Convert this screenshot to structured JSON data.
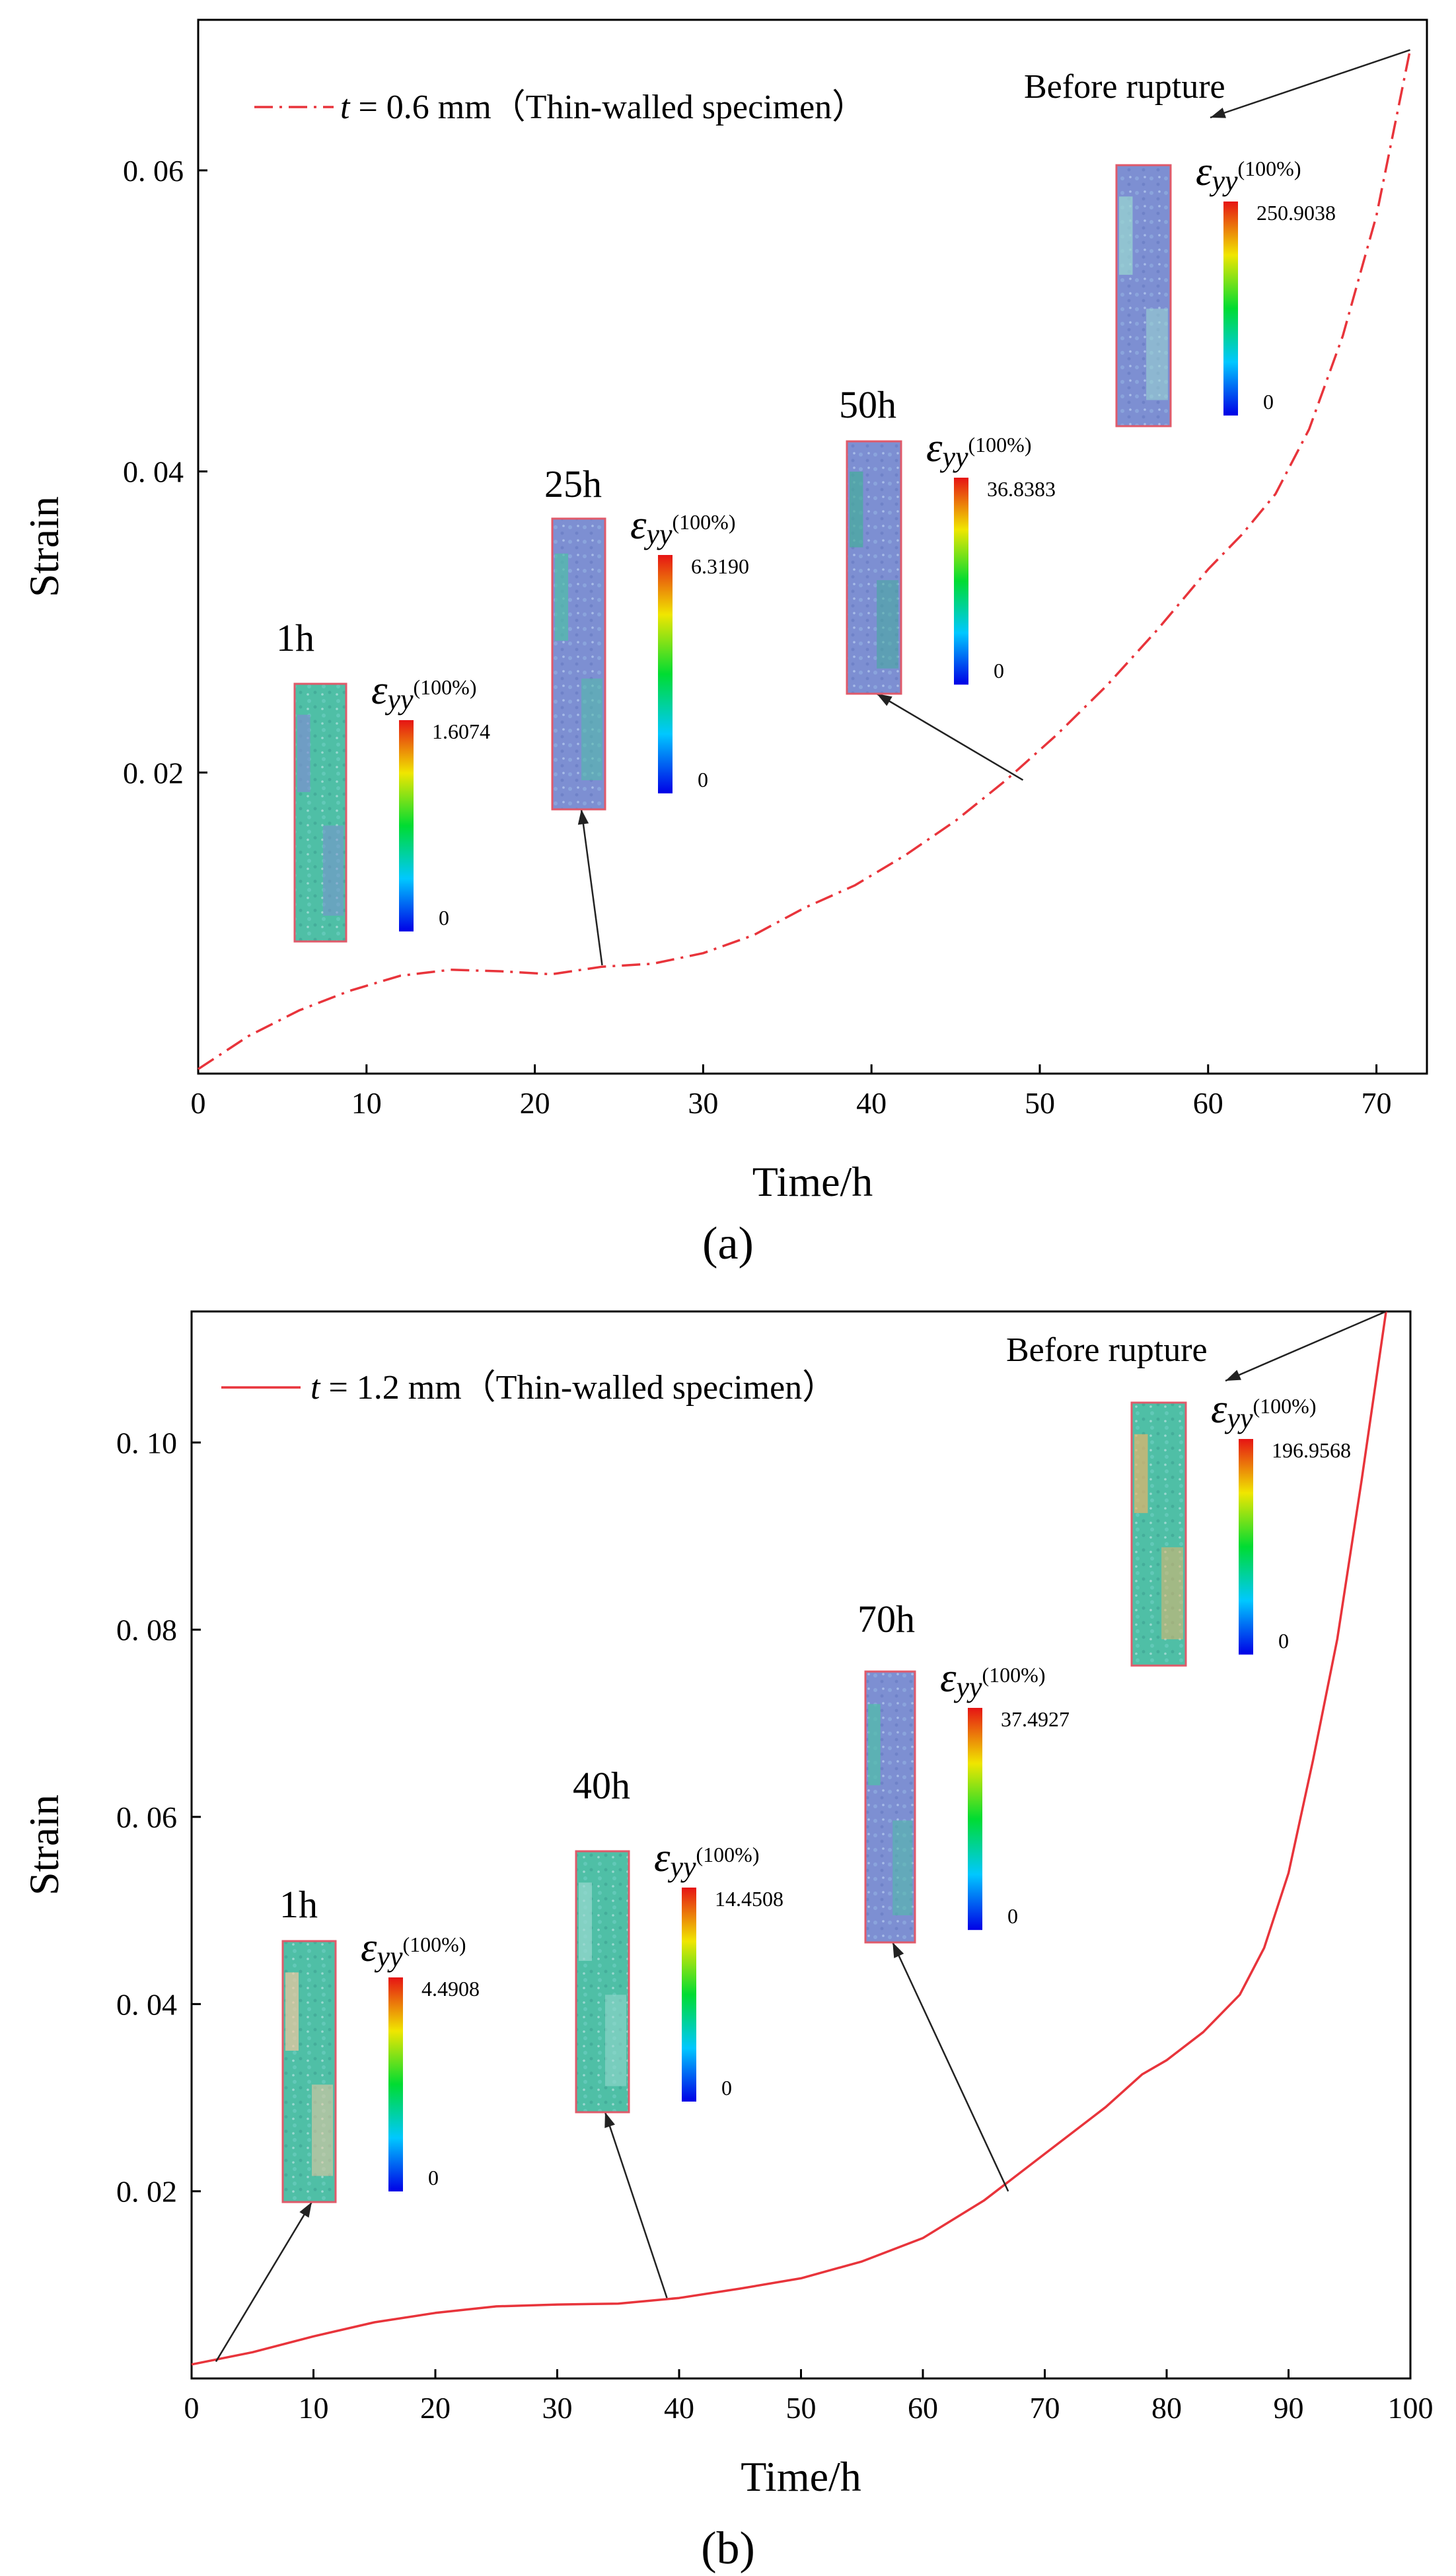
{
  "chart_data": [
    {
      "type": "line",
      "panel_label": "(a)",
      "xlabel": "Time/h",
      "ylabel": "Strain",
      "xlim": [
        0,
        73
      ],
      "ylim": [
        0,
        0.07
      ],
      "xticks": [
        0,
        10,
        20,
        30,
        40,
        50,
        60,
        70
      ],
      "yticks": [
        0.02,
        0.04,
        0.06
      ],
      "ytick_labels": [
        "0. 02",
        "0. 04",
        "0. 06"
      ],
      "legend_position": "top-left",
      "series": [
        {
          "name": "t = 0.6 mm（Thin-walled specimen）",
          "legend_var": "t",
          "legend_rest": " = 0.6 mm（Thin-walled specimen）",
          "style": "dashdot",
          "color": "#e8343b",
          "x": [
            0,
            3,
            6,
            9,
            12,
            15,
            18,
            21,
            24,
            27,
            30,
            33,
            36,
            39,
            42,
            45,
            48,
            51,
            54,
            57,
            60,
            62,
            64,
            66,
            68,
            70,
            72
          ],
          "y": [
            0.0003,
            0.0025,
            0.0042,
            0.0055,
            0.0065,
            0.0069,
            0.0068,
            0.0066,
            0.0071,
            0.0073,
            0.008,
            0.0092,
            0.011,
            0.0125,
            0.0145,
            0.0168,
            0.0195,
            0.0225,
            0.0258,
            0.0295,
            0.0335,
            0.0358,
            0.0385,
            0.0428,
            0.049,
            0.057,
            0.068
          ]
        }
      ],
      "annotations": [
        {
          "label": "1h",
          "colorbar_max": "1.6074",
          "colorbar_min": "0",
          "eps_symbol": "ε",
          "eps_sub": "yy",
          "eps_unit": "(100%)"
        },
        {
          "label": "25h",
          "colorbar_max": "6.3190",
          "colorbar_min": "0",
          "eps_symbol": "ε",
          "eps_sub": "yy",
          "eps_unit": "(100%)"
        },
        {
          "label": "50h",
          "colorbar_max": "36.8383",
          "colorbar_min": "0",
          "eps_symbol": "ε",
          "eps_sub": "yy",
          "eps_unit": "(100%)"
        },
        {
          "label": "Before  rupture",
          "colorbar_max": "250.9038",
          "colorbar_min": "0",
          "eps_symbol": "ε",
          "eps_sub": "yy",
          "eps_unit": "(100%)"
        }
      ]
    },
    {
      "type": "line",
      "panel_label": "(b)",
      "xlabel": "Time/h",
      "ylabel": "Strain",
      "xlim": [
        0,
        100
      ],
      "ylim": [
        0,
        0.114
      ],
      "xticks": [
        0,
        10,
        20,
        30,
        40,
        50,
        60,
        70,
        80,
        90,
        100
      ],
      "yticks": [
        0.02,
        0.04,
        0.06,
        0.08,
        0.1
      ],
      "ytick_labels": [
        "0. 02",
        "0. 04",
        "0. 06",
        "0. 08",
        "0. 10"
      ],
      "legend_position": "top-left",
      "series": [
        {
          "name": "t = 1.2 mm（Thin-walled specimen）",
          "legend_var": "t",
          "legend_rest": " = 1.2 mm（Thin-walled specimen）",
          "style": "solid",
          "color": "#e8343b",
          "x": [
            0,
            5,
            10,
            15,
            20,
            25,
            30,
            35,
            40,
            45,
            50,
            55,
            60,
            65,
            70,
            75,
            78,
            80,
            83,
            86,
            88,
            90,
            92,
            94,
            96,
            98
          ],
          "y": [
            0.0015,
            0.0028,
            0.0045,
            0.006,
            0.007,
            0.0077,
            0.0079,
            0.008,
            0.0086,
            0.0096,
            0.0107,
            0.0125,
            0.015,
            0.019,
            0.024,
            0.029,
            0.0325,
            0.034,
            0.037,
            0.041,
            0.046,
            0.054,
            0.066,
            0.079,
            0.096,
            0.114
          ]
        }
      ],
      "annotations": [
        {
          "label": "1h",
          "colorbar_max": "4.4908",
          "colorbar_min": "0",
          "eps_symbol": "ε",
          "eps_sub": "yy",
          "eps_unit": "(100%)"
        },
        {
          "label": "40h",
          "colorbar_max": "14.4508",
          "colorbar_min": "0",
          "eps_symbol": "ε",
          "eps_sub": "yy",
          "eps_unit": "(100%)"
        },
        {
          "label": "70h",
          "colorbar_max": "37.4927",
          "colorbar_min": "0",
          "eps_symbol": "ε",
          "eps_sub": "yy",
          "eps_unit": "(100%)"
        },
        {
          "label": "Before  rupture",
          "colorbar_max": "196.9568",
          "colorbar_min": "0",
          "eps_symbol": "ε",
          "eps_sub": "yy",
          "eps_unit": "(100%)"
        }
      ]
    }
  ]
}
